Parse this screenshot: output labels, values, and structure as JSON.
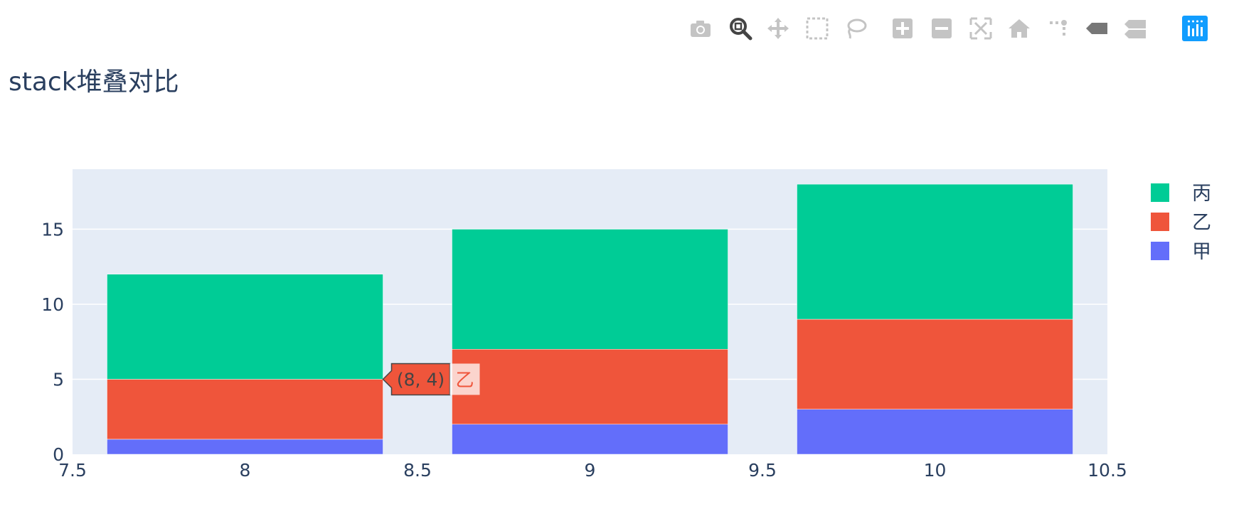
{
  "colors": {
    "丙": "#00cc96",
    "乙": "#ef553b",
    "甲": "#636efa",
    "plot_bg": "#e5ecf6",
    "text": "#2a3f5f"
  },
  "modebar": {
    "buttons": [
      "camera-icon",
      "zoom-icon",
      "pan-icon",
      "box-select-icon",
      "lasso-select-icon",
      "zoom-in-icon",
      "zoom-out-icon",
      "autoscale-icon",
      "reset-axes-icon",
      "spike-lines-icon",
      "hover-closest-icon",
      "hover-compare-icon",
      "plotly-logo-icon"
    ]
  },
  "chart_data": {
    "type": "bar",
    "barmode": "stack",
    "title": "stack堆叠对比",
    "x": [
      8,
      9,
      10
    ],
    "series": [
      {
        "name": "甲",
        "values": [
          1,
          2,
          3
        ],
        "color": "#636efa"
      },
      {
        "name": "乙",
        "values": [
          4,
          5,
          6
        ],
        "color": "#ef553b"
      },
      {
        "name": "丙",
        "values": [
          7,
          8,
          9
        ],
        "color": "#00cc96"
      }
    ],
    "xlim": [
      7.5,
      10.5
    ],
    "ylim": [
      0,
      19
    ],
    "xticks": [
      "7.5",
      "8",
      "8.5",
      "9",
      "9.5",
      "10",
      "10.5"
    ],
    "yticks": [
      "0",
      "5",
      "10",
      "15"
    ],
    "grid": true,
    "legend": {
      "placement": "top-right",
      "order": [
        "丙",
        "乙",
        "甲"
      ]
    },
    "hover": {
      "label": "(8, 4)",
      "series": "乙",
      "x": 8,
      "y": 5
    }
  }
}
